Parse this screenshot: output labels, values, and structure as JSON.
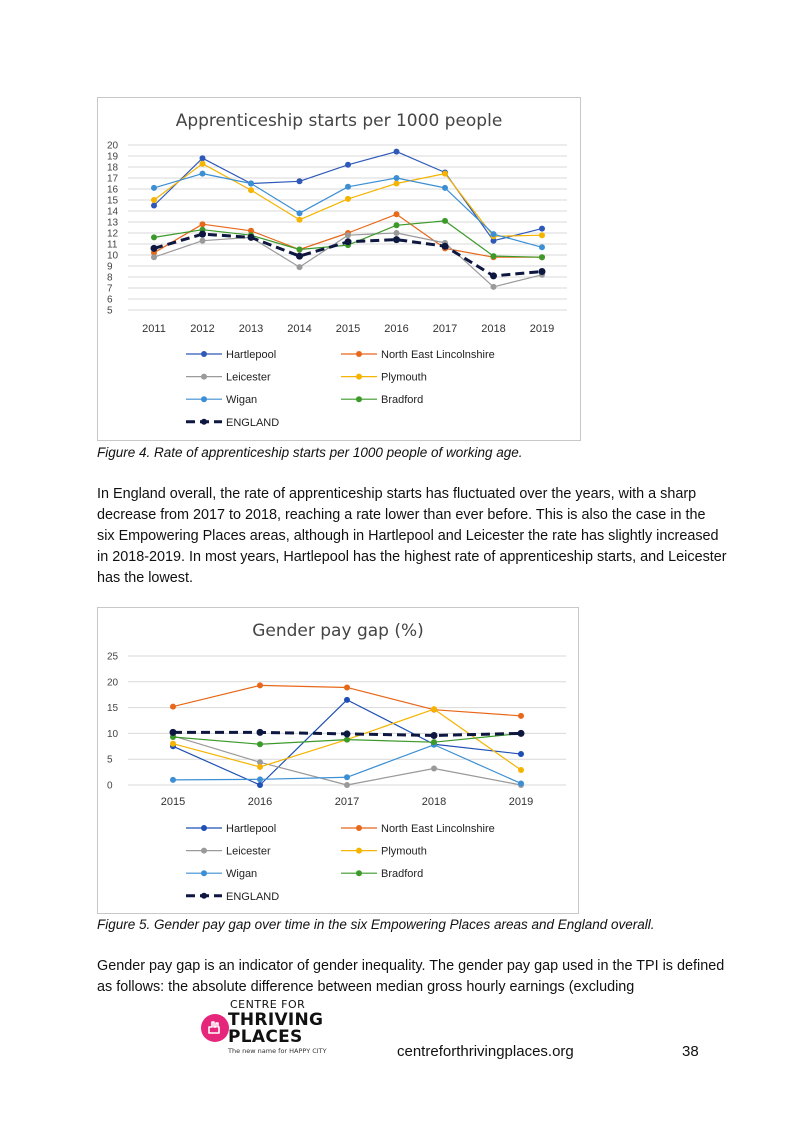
{
  "figure4": {
    "caption": "Figure 4. Rate of apprenticeship starts per 1000 people of working age.",
    "chart_data": {
      "type": "line",
      "title": "Apprenticeship starts per 1000 people",
      "x": [
        "2011",
        "2012",
        "2013",
        "2014",
        "2015",
        "2016",
        "2017",
        "2018",
        "2019"
      ],
      "ylim": [
        5,
        20
      ],
      "yticks": [
        5,
        6,
        7,
        8,
        9,
        10,
        11,
        12,
        13,
        14,
        15,
        16,
        17,
        18,
        19,
        20
      ],
      "grid": true,
      "legend": "bottom",
      "series": [
        {
          "name": "Hartlepool",
          "color": "#2e59b8",
          "values": [
            14.5,
            18.8,
            16.5,
            16.7,
            18.2,
            19.4,
            17.5,
            11.3,
            12.4
          ]
        },
        {
          "name": "North East Lincolnshire",
          "color": "#e8681a",
          "values": [
            10.2,
            12.8,
            12.2,
            10.5,
            12.0,
            13.7,
            10.6,
            9.8,
            9.8
          ]
        },
        {
          "name": "Leicester",
          "color": "#9a9a9a",
          "values": [
            9.8,
            11.3,
            11.6,
            8.9,
            11.8,
            12.0,
            11.1,
            7.1,
            8.2
          ]
        },
        {
          "name": "Plymouth",
          "color": "#f5b400",
          "values": [
            15.0,
            18.3,
            15.9,
            13.2,
            15.1,
            16.5,
            17.4,
            11.7,
            11.8
          ]
        },
        {
          "name": "Wigan",
          "color": "#3d8fd4",
          "values": [
            16.1,
            17.4,
            16.5,
            13.8,
            16.2,
            17.0,
            16.1,
            11.9,
            10.7
          ]
        },
        {
          "name": "Bradford",
          "color": "#3c9a2a",
          "values": [
            11.6,
            12.3,
            11.8,
            10.5,
            10.9,
            12.7,
            13.1,
            9.9,
            9.8
          ]
        },
        {
          "name": "ENGLAND",
          "color": "#0d1740",
          "dashed": true,
          "values": [
            10.6,
            11.9,
            11.6,
            9.9,
            11.2,
            11.4,
            10.8,
            8.1,
            8.5
          ]
        }
      ]
    }
  },
  "paragraph1": "In England overall, the rate of apprenticeship starts has fluctuated over the years, with a sharp decrease from 2017 to 2018, reaching a rate lower than ever before. This is also the case in the six Empowering Places areas, although in Hartlepool and Leicester the rate has slightly increased in 2018-2019. In most years, Hartlepool has the highest rate of apprenticeship starts, and Leicester has the lowest.",
  "figure5": {
    "caption": "Figure 5. Gender pay gap over time in the six Empowering Places areas and England overall.",
    "chart_data": {
      "type": "line",
      "title": "Gender pay gap (%)",
      "x": [
        "2015",
        "2016",
        "2017",
        "2018",
        "2019"
      ],
      "ylim": [
        0,
        25
      ],
      "yticks": [
        0,
        5,
        10,
        15,
        20,
        25
      ],
      "grid": true,
      "legend": "bottom",
      "series": [
        {
          "name": "Hartlepool",
          "color": "#1f4fb4",
          "values": [
            7.5,
            0.0,
            16.5,
            7.9,
            6.0
          ]
        },
        {
          "name": "North East Lincolnshire",
          "color": "#e8681a",
          "values": [
            15.2,
            19.3,
            18.9,
            14.6,
            13.4
          ]
        },
        {
          "name": "Leicester",
          "color": "#9a9a9a",
          "values": [
            9.5,
            4.4,
            0.0,
            3.2,
            0.0
          ]
        },
        {
          "name": "Plymouth",
          "color": "#f5b400",
          "values": [
            8.0,
            3.5,
            8.8,
            14.7,
            2.9
          ]
        },
        {
          "name": "Wigan",
          "color": "#3d8fd4",
          "values": [
            1.0,
            1.1,
            1.5,
            7.8,
            0.3
          ]
        },
        {
          "name": "Bradford",
          "color": "#3c9a2a",
          "values": [
            9.3,
            7.9,
            8.8,
            8.3,
            10.0
          ]
        },
        {
          "name": "ENGLAND",
          "color": "#0d1740",
          "dashed": true,
          "values": [
            10.2,
            10.2,
            9.9,
            9.6,
            10.0
          ]
        }
      ]
    }
  },
  "paragraph2": "Gender pay gap is an indicator of gender inequality. The gender pay gap used in the TPI is defined as follows: the absolute difference between median gross hourly earnings (excluding",
  "footer": {
    "logo_line1": "CENTRE FOR",
    "logo_line2": "THRIVING",
    "logo_line3": "PLACES",
    "logo_tagline": "The new name for HAPPY CITY",
    "url": "centreforthrivingplaces.org",
    "page_number": "38"
  }
}
